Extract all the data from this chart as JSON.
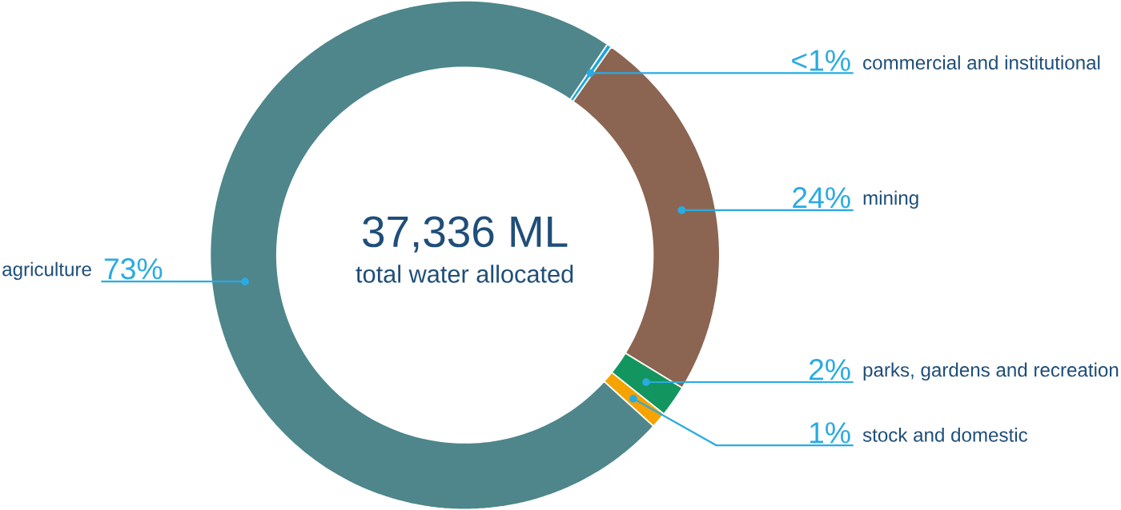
{
  "chart_data": {
    "type": "donut",
    "title": "37,336 ML",
    "subtitle": "total water allocated",
    "categories": [
      "commercial and institutional",
      "mining",
      "parks, gardens and recreation",
      "stock and domestic",
      "agriculture"
    ],
    "values": [
      0.3,
      24,
      2,
      1,
      72.7
    ],
    "colors": [
      "#1ea7d8",
      "#8b6551",
      "#13955f",
      "#f5a300",
      "#4e868b"
    ],
    "value_labels": [
      "<1%",
      "24%",
      "2%",
      "1%",
      "73%"
    ]
  }
}
